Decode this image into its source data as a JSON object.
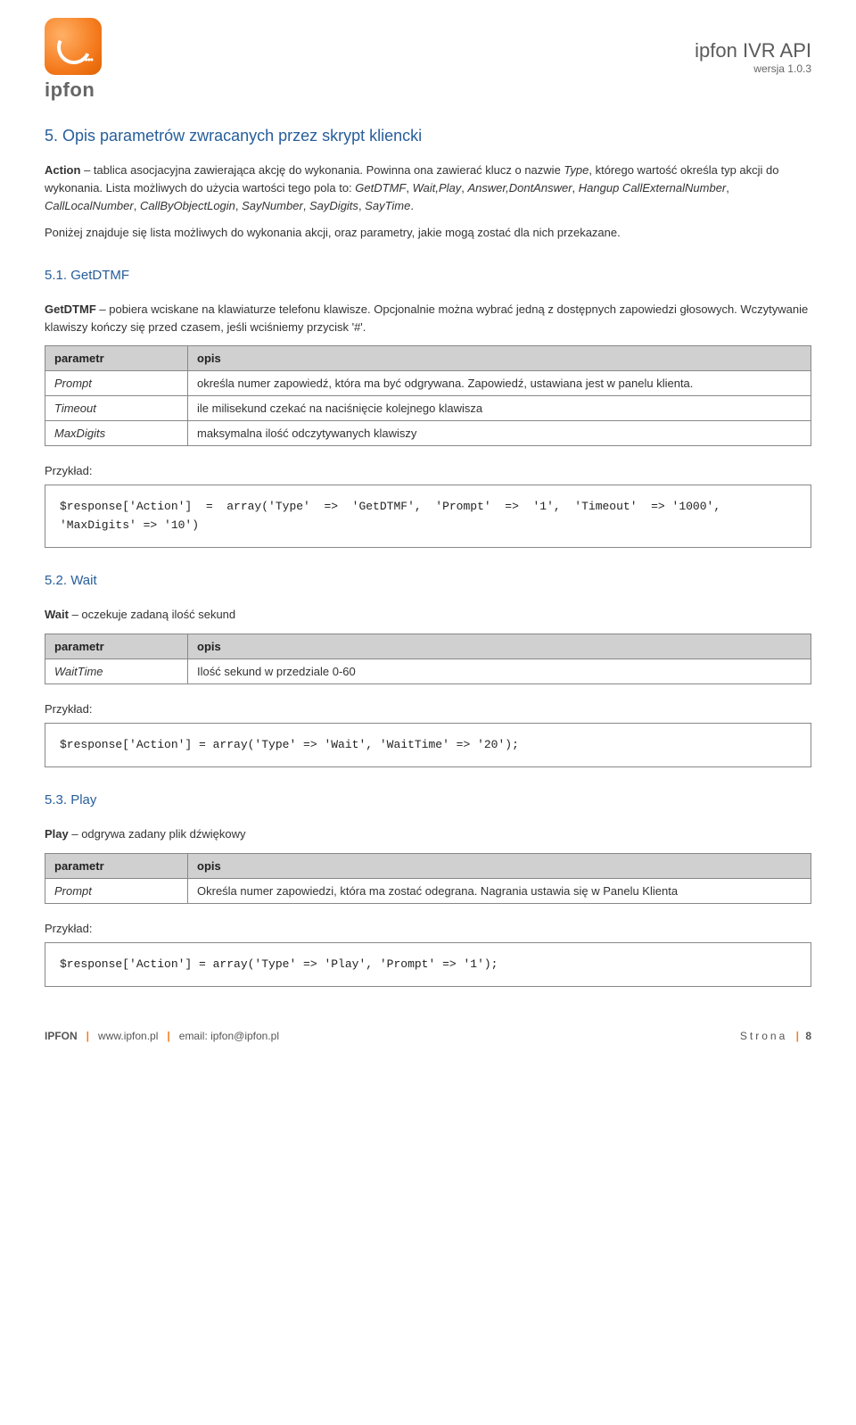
{
  "header": {
    "logo_text": "ipfon",
    "doc_title": "ipfon IVR API",
    "doc_version": "wersja 1.0.3"
  },
  "section5": {
    "number": "5.",
    "title": "Opis parametrów zwracanych przez skrypt kliencki",
    "intro_html": "<b>Action</b> – tablica asocjacyjna zawierająca akcję do wykonania. Powinna ona zawierać klucz o nazwie <i>Type</i>, którego wartość określa typ akcji do wykonania. Lista możliwych do użycia wartości tego pola to: <i>GetDTMF</i>, <i>Wait,Play</i>, <i>Answer,DontAnswer</i>, <i>Hangup CallExternalNumber</i>, <i>CallLocalNumber</i>, <i>CallByObjectLogin</i>, <i>SayNumber</i>, <i>SayDigits</i>, <i>SayTime</i>.",
    "intro2": "Poniżej znajduje się lista możliwych do wykonania akcji, oraz parametry, jakie mogą zostać dla nich przekazane."
  },
  "section51": {
    "number": "5.1.",
    "title": "GetDTMF",
    "desc_html": "<b>GetDTMF</b> – pobiera wciskane na klawiaturze telefonu klawisze. Opcjonalnie można wybrać jedną z dostępnych zapowiedzi głosowych. Wczytywanie klawiszy kończy się przed czasem, jeśli wciśniemy przycisk '#'.",
    "table": {
      "col_param": "parametr",
      "col_desc": "opis",
      "rows": [
        {
          "name": "Prompt",
          "desc": "określa numer zapowiedź, która ma być odgrywana. Zapowiedź, ustawiana jest w panelu klienta."
        },
        {
          "name": "Timeout",
          "desc": "ile milisekund czekać na naciśnięcie kolejnego klawisza"
        },
        {
          "name": "MaxDigits",
          "desc": "maksymalna ilość odczytywanych klawiszy"
        }
      ]
    },
    "example_label": "Przykład:",
    "code": "$response['Action']  =  array('Type'  =>  'GetDTMF',  'Prompt'  =>  '1',  'Timeout'  => '1000', 'MaxDigits' => '10')"
  },
  "section52": {
    "number": "5.2.",
    "title": "Wait",
    "desc_html": "<b>Wait</b> – oczekuje zadaną ilość sekund",
    "table": {
      "col_param": "parametr",
      "col_desc": "opis",
      "rows": [
        {
          "name": "WaitTime",
          "desc": "Ilość sekund w przedziale 0-60"
        }
      ]
    },
    "example_label": "Przykład:",
    "code": "$response['Action'] = array('Type' => 'Wait', 'WaitTime' => '20');"
  },
  "section53": {
    "number": "5.3.",
    "title": "Play",
    "desc_html": "<b>Play</b> – odgrywa zadany plik dźwiękowy",
    "table": {
      "col_param": "parametr",
      "col_desc": "opis",
      "rows": [
        {
          "name": "Prompt",
          "desc": "Określa numer zapowiedzi, która ma zostać odegrana. Nagrania ustawia się w Panelu Klienta"
        }
      ]
    },
    "example_label": "Przykład:",
    "code": "$response['Action'] = array('Type' => 'Play', 'Prompt' => '1');"
  },
  "footer": {
    "brand": "IPFON",
    "url": "www.ipfon.pl",
    "email": "email: ipfon@ipfon.pl",
    "page_word": "Strona",
    "page_num": "8"
  }
}
